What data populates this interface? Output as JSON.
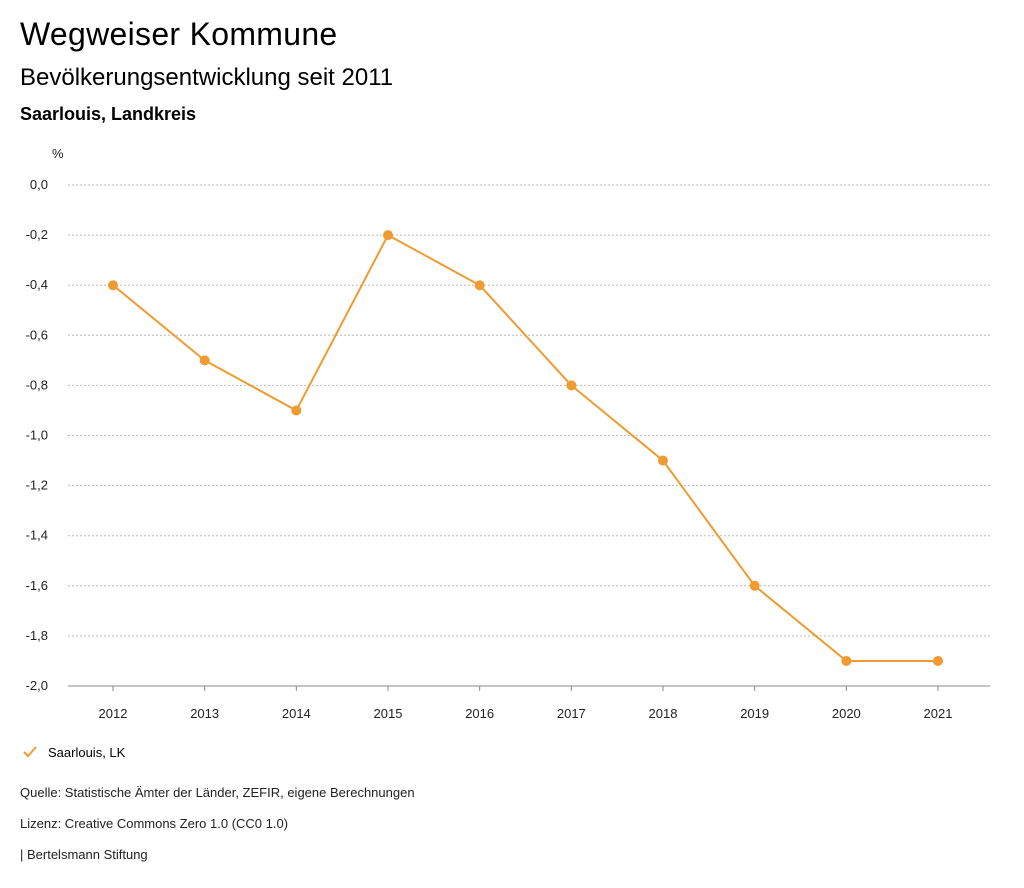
{
  "header": {
    "title": "Wegweiser Kommune",
    "subtitle": "Bevölkerungsentwicklung seit 2011",
    "region": "Saarlouis, Landkreis"
  },
  "chart_data": {
    "type": "line",
    "title": "Bevölkerungsentwicklung seit 2011",
    "ylabel": "%",
    "xlabel": "",
    "categories": [
      "2012",
      "2013",
      "2014",
      "2015",
      "2016",
      "2017",
      "2018",
      "2019",
      "2020",
      "2021"
    ],
    "series": [
      {
        "name": "Saarlouis, LK",
        "color": "#ef9b32",
        "values": [
          -0.4,
          -0.7,
          -0.9,
          -0.2,
          -0.4,
          -0.8,
          -1.1,
          -1.6,
          -1.9,
          -1.9
        ]
      }
    ],
    "ylim": [
      -2.0,
      0.0
    ],
    "yticks": [
      0.0,
      -0.2,
      -0.4,
      -0.6,
      -0.8,
      -1.0,
      -1.2,
      -1.4,
      -1.6,
      -1.8,
      -2.0
    ],
    "ytick_labels": [
      "0,0",
      "-0,2",
      "-0,4",
      "-0,6",
      "-0,8",
      "-1,0",
      "-1,2",
      "-1,4",
      "-1,6",
      "-1,8",
      "-2,0"
    ],
    "grid": true,
    "legend_position": "bottom-left"
  },
  "legend": {
    "label": "Saarlouis, LK",
    "icon": "check-icon"
  },
  "footer": {
    "source": "Quelle: Statistische Ämter der Länder, ZEFIR, eigene Berechnungen",
    "license": "Lizenz: Creative Commons Zero 1.0 (CC0 1.0)",
    "credit": "| Bertelsmann Stiftung"
  },
  "colors": {
    "accent": "#ef9b32",
    "grid": "#bbbbbb"
  }
}
